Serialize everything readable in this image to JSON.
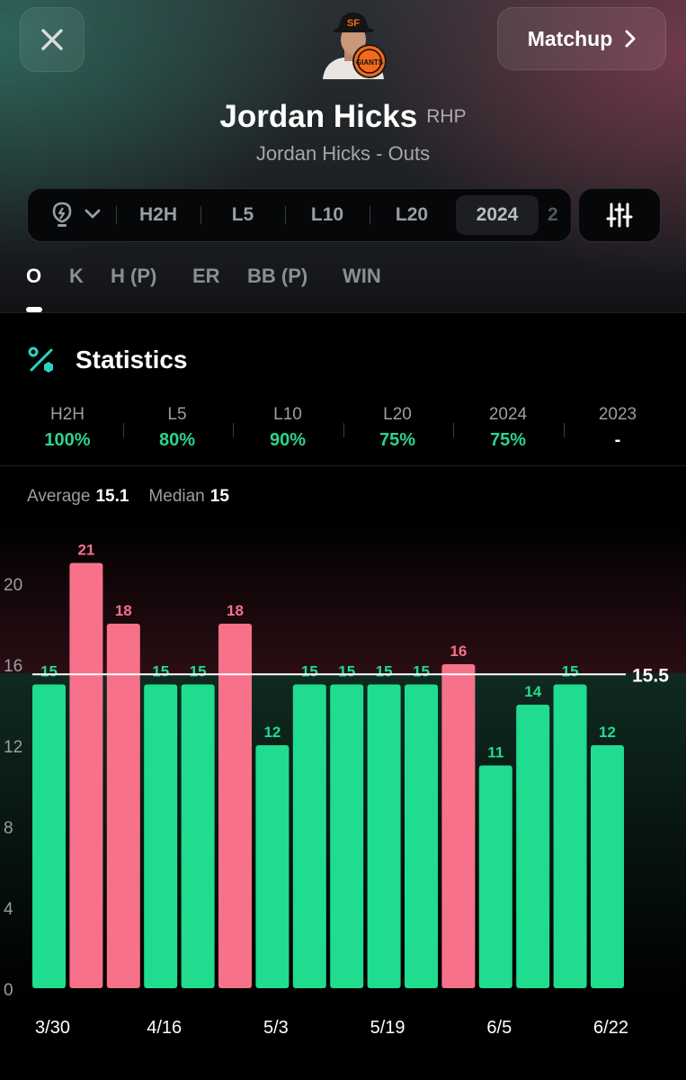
{
  "header": {
    "close_icon": "close-icon",
    "matchup_label": "Matchup",
    "player_name": "Jordan Hicks",
    "player_position": "RHP",
    "subtitle": "Jordan Hicks - Outs"
  },
  "range_filters": {
    "items": [
      "H2H",
      "L5",
      "L10",
      "L20",
      "2024",
      "2"
    ],
    "active": "2024",
    "insight_icon": "lightbulb-icon",
    "filter_icon": "sliders-icon"
  },
  "stat_tabs": {
    "items": [
      "O",
      "K",
      "H (P)",
      "ER",
      "BB (P)",
      "WIN"
    ],
    "active": "O"
  },
  "statistics": {
    "title": "Statistics",
    "icon": "percent-icon",
    "periods": [
      {
        "label": "H2H",
        "value": "100%"
      },
      {
        "label": "L5",
        "value": "80%"
      },
      {
        "label": "L10",
        "value": "90%"
      },
      {
        "label": "L20",
        "value": "75%"
      },
      {
        "label": "2024",
        "value": "75%"
      },
      {
        "label": "2023",
        "value": "-"
      }
    ],
    "average_label": "Average",
    "average_value": "15.1",
    "median_label": "Median",
    "median_value": "15"
  },
  "colors": {
    "over": "#1fdc8f",
    "under": "#f7718a",
    "accent_green": "#2bd48c"
  },
  "chart_data": {
    "type": "bar",
    "values": [
      15,
      21,
      18,
      15,
      15,
      18,
      12,
      15,
      15,
      15,
      15,
      16,
      11,
      14,
      15,
      12
    ],
    "x_tick_labels": [
      "3/30",
      "4/16",
      "5/3",
      "5/19",
      "6/5",
      "6/22"
    ],
    "x_tick_bar_index": [
      0,
      3,
      6,
      9,
      12,
      15
    ],
    "yticks": [
      0,
      4,
      8,
      12,
      16,
      20
    ],
    "ylim": [
      0,
      24
    ],
    "line_value": 15.5,
    "line_label": "15.5"
  }
}
